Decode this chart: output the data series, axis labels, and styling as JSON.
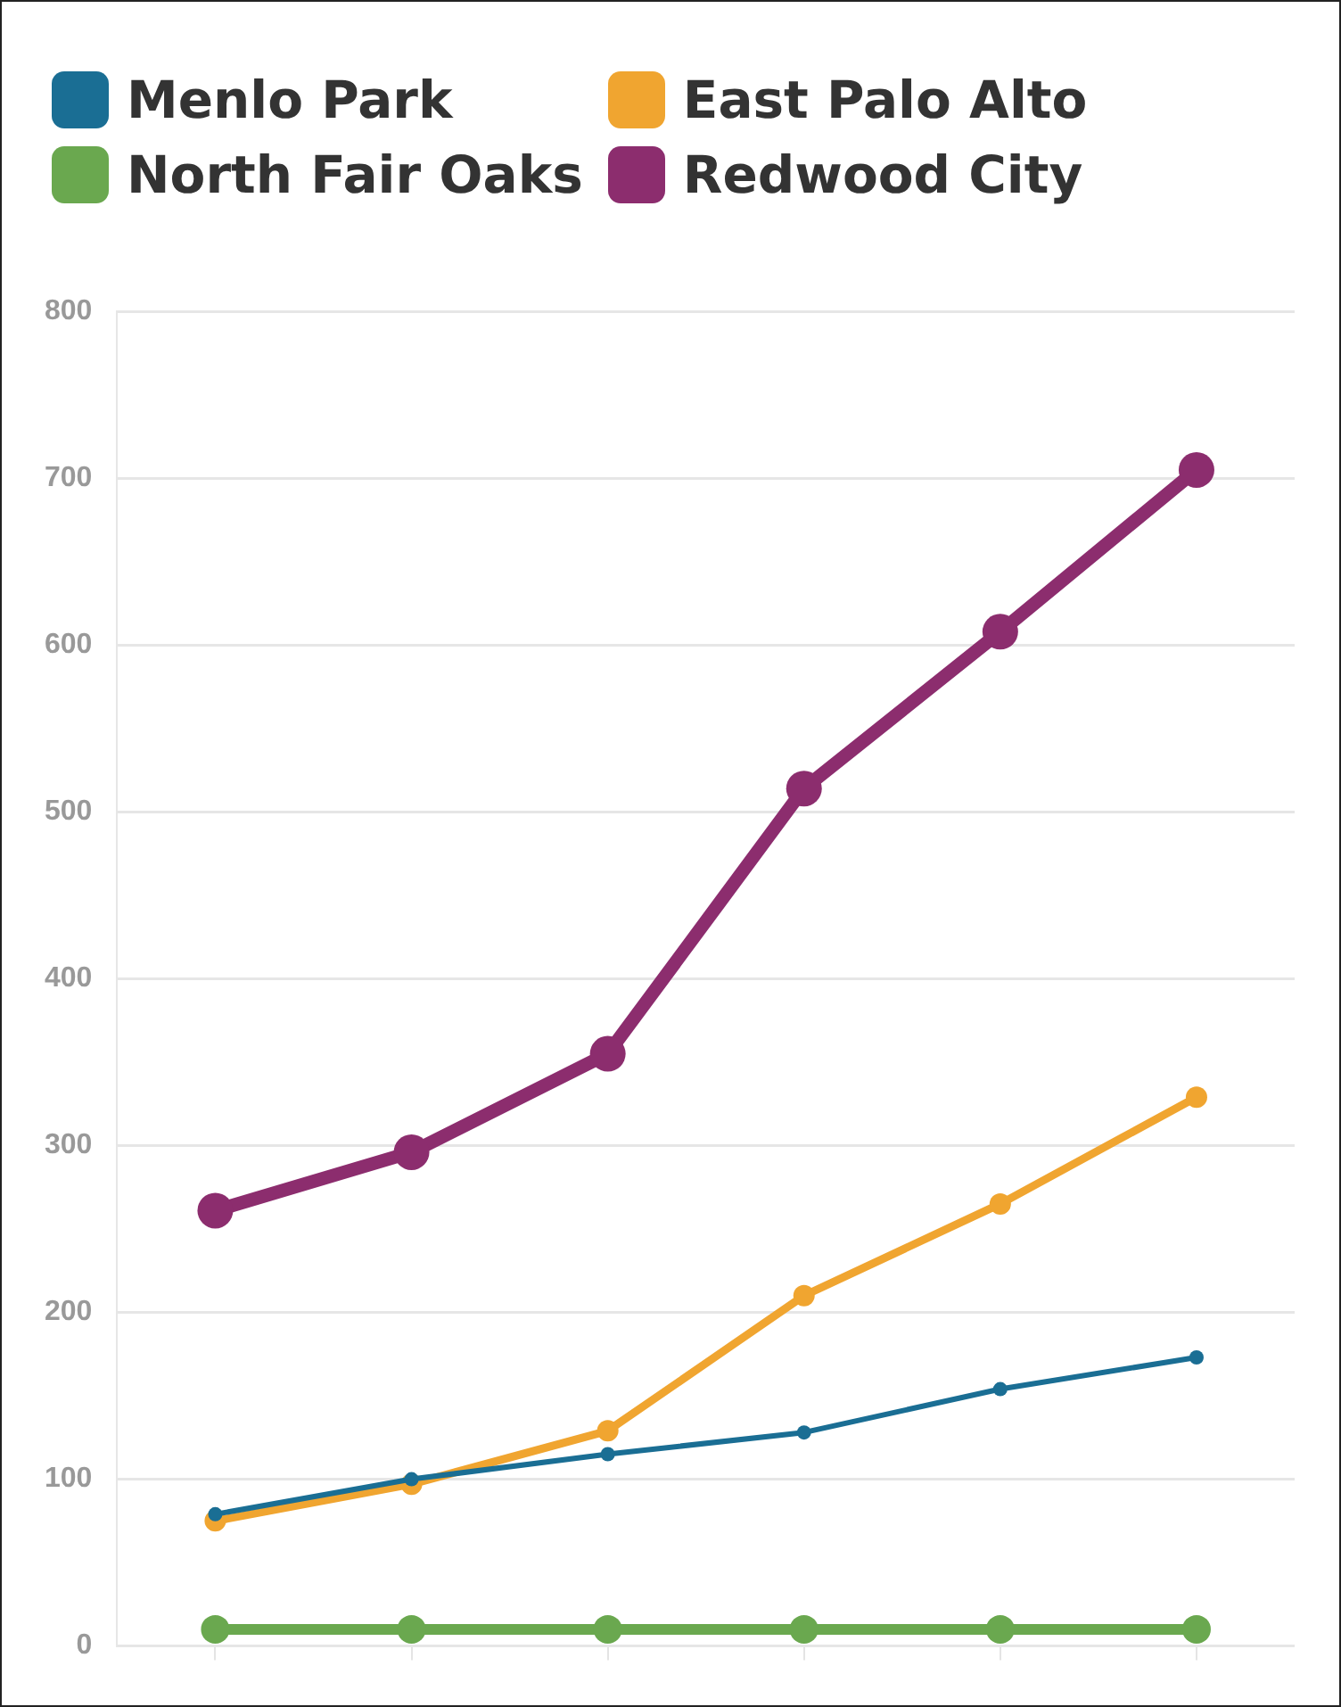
{
  "chart_data": {
    "type": "line",
    "categories": [
      null,
      null,
      null,
      null,
      null,
      null
    ],
    "ylim": [
      0,
      800
    ],
    "yticks": [
      0,
      100,
      200,
      300,
      400,
      500,
      600,
      700,
      800
    ],
    "tick_labels": "y",
    "grid": "y",
    "legend": "top left",
    "marker": "circle",
    "series": [
      {
        "name": "Menlo Park",
        "color": "#1a6e94",
        "values": [
          79,
          100,
          115,
          128,
          154,
          173
        ]
      },
      {
        "name": "East Palo Alto",
        "color": "#f0a530",
        "values": [
          75,
          97,
          129,
          210,
          265,
          329
        ]
      },
      {
        "name": "North Fair Oaks",
        "color": "#6aa84f",
        "values": [
          10,
          10,
          10,
          10,
          10,
          10
        ]
      },
      {
        "name": "Redwood City",
        "color": "#8c2d6e",
        "values": [
          261,
          296,
          355,
          514,
          608,
          705
        ]
      }
    ]
  }
}
